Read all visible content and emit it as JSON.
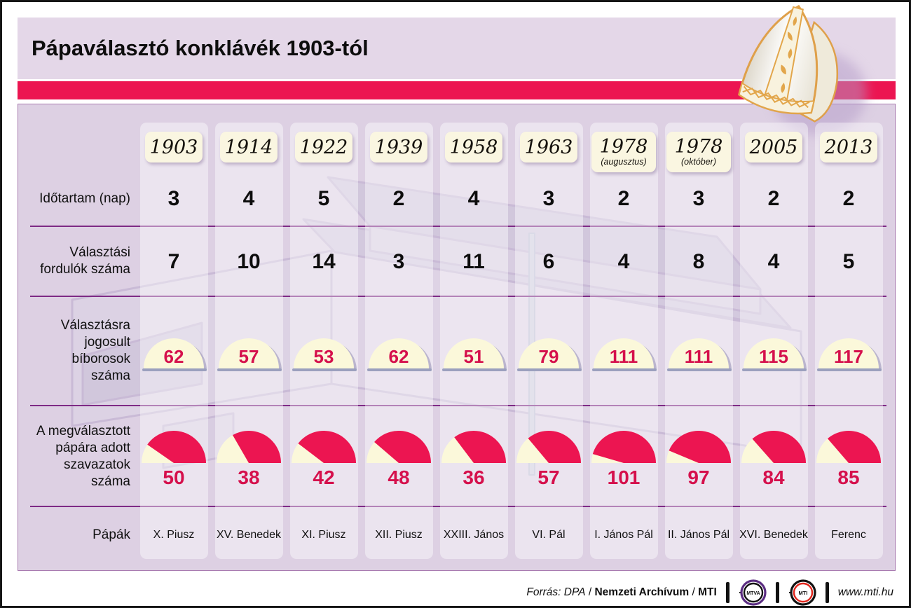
{
  "title": "Pápaválasztó konklávék 1903-tól",
  "colors": {
    "stripe_red": "#EC1551",
    "value_red": "#D5104C",
    "cream": "#FBF8DA",
    "year_box_cream": "#FAF6E1",
    "lavender_bg": "#DDD0E3",
    "divider_purple": "#7E2A85",
    "mtva_purple": "#5B2D82",
    "mti_red": "#E1251B"
  },
  "rows": [
    {
      "key": "duration",
      "label_lines": [
        "Időtartam (nap)"
      ]
    },
    {
      "key": "rounds",
      "label_lines": [
        "Választási",
        "fordulók száma"
      ]
    },
    {
      "key": "cardinals",
      "label_lines": [
        "Választásra",
        "jogosult",
        "bíborosok",
        "száma"
      ]
    },
    {
      "key": "votes",
      "label_lines": [
        "A megválasztott",
        "pápára adott",
        "szavazatok",
        "száma"
      ]
    },
    {
      "key": "popes",
      "label_lines": [
        "Pápák"
      ]
    }
  ],
  "chart_data": {
    "type": "table",
    "description": "Papal conclaves since 1903. 'cardinals' shown as cream half-dome gauges; 'votes' shown as half-pie charts where the red wedge is votes/cardinals.",
    "columns": [
      {
        "year": "1903",
        "year_note": "",
        "duration": 3,
        "rounds": 7,
        "cardinals": 62,
        "votes": 50,
        "pope": "X. Piusz"
      },
      {
        "year": "1914",
        "year_note": "",
        "duration": 4,
        "rounds": 10,
        "cardinals": 57,
        "votes": 38,
        "pope": "XV. Benedek"
      },
      {
        "year": "1922",
        "year_note": "",
        "duration": 5,
        "rounds": 14,
        "cardinals": 53,
        "votes": 42,
        "pope": "XI. Piusz"
      },
      {
        "year": "1939",
        "year_note": "",
        "duration": 2,
        "rounds": 3,
        "cardinals": 62,
        "votes": 48,
        "pope": "XII. Piusz"
      },
      {
        "year": "1958",
        "year_note": "",
        "duration": 4,
        "rounds": 11,
        "cardinals": 51,
        "votes": 36,
        "pope": "XXIII. János"
      },
      {
        "year": "1963",
        "year_note": "",
        "duration": 3,
        "rounds": 6,
        "cardinals": 79,
        "votes": 57,
        "pope": "VI. Pál"
      },
      {
        "year": "1978",
        "year_note": "(augusztus)",
        "duration": 2,
        "rounds": 4,
        "cardinals": 111,
        "votes": 101,
        "pope": "I. János Pál"
      },
      {
        "year": "1978",
        "year_note": "(október)",
        "duration": 3,
        "rounds": 8,
        "cardinals": 111,
        "votes": 97,
        "pope": "II. János Pál"
      },
      {
        "year": "2005",
        "year_note": "",
        "duration": 2,
        "rounds": 4,
        "cardinals": 115,
        "votes": 84,
        "pope": "XVI. Benedek"
      },
      {
        "year": "2013",
        "year_note": "",
        "duration": 2,
        "rounds": 5,
        "cardinals": 117,
        "votes": 85,
        "pope": "Ferenc"
      }
    ]
  },
  "footer": {
    "source_label": "Forrás:",
    "source_agency1": "DPA",
    "separator1": "/",
    "source_agency2": "Nemzeti Archívum",
    "separator2": "/",
    "source_agency3": "MTI",
    "logo_mtva": "MTVA",
    "logo_mti": "MTI",
    "website": "www.mti.hu"
  }
}
